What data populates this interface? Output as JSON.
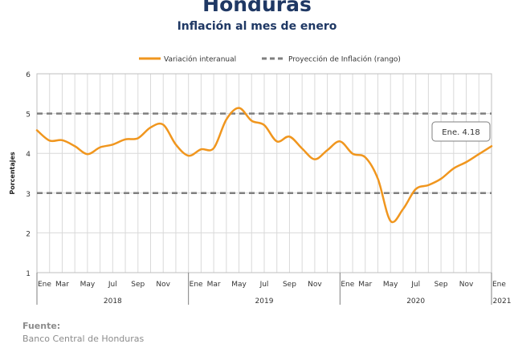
{
  "title": "Honduras",
  "subtitle": "Inflación al mes de enero",
  "source": {
    "label": "Fuente:",
    "text": "Banco Central de Honduras"
  },
  "colors": {
    "series": "#f0961e",
    "target": "#7f7f7f",
    "title": "#1f3864",
    "grid": "#d9d9d9"
  },
  "chart_data": {
    "type": "line",
    "ylabel": "Porcentajes",
    "ylim": [
      1,
      6
    ],
    "yticks": [
      1,
      2,
      3,
      4,
      5,
      6
    ],
    "grid": true,
    "legend_position": "top",
    "x_tick_labels": [
      "Ene",
      "Mar",
      "May",
      "Jul",
      "Sep",
      "Nov",
      "Ene",
      "Mar",
      "May",
      "Jul",
      "Sep",
      "Nov",
      "Ene",
      "Mar",
      "May",
      "Jul",
      "Sep",
      "Nov",
      "Ene"
    ],
    "year_labels": [
      "2018",
      "2019",
      "2020",
      "2021"
    ],
    "months": [
      "Ene 2018",
      "Feb 2018",
      "Mar 2018",
      "Abr 2018",
      "May 2018",
      "Jun 2018",
      "Jul 2018",
      "Ago 2018",
      "Sep 2018",
      "Oct 2018",
      "Nov 2018",
      "Dic 2018",
      "Ene 2019",
      "Feb 2019",
      "Mar 2019",
      "Abr 2019",
      "May 2019",
      "Jun 2019",
      "Jul 2019",
      "Ago 2019",
      "Sep 2019",
      "Oct 2019",
      "Nov 2019",
      "Dic 2019",
      "Ene 2020",
      "Feb 2020",
      "Mar 2020",
      "Abr 2020",
      "May 2020",
      "Jun 2020",
      "Jul 2020",
      "Ago 2020",
      "Sep 2020",
      "Oct 2020",
      "Nov 2020",
      "Dic 2020",
      "Ene 2021"
    ],
    "series": [
      {
        "name": "Variación interanual",
        "values": [
          4.58,
          4.32,
          4.33,
          4.18,
          3.98,
          4.15,
          4.22,
          4.35,
          4.38,
          4.65,
          4.72,
          4.22,
          3.94,
          4.1,
          4.13,
          4.85,
          5.14,
          4.82,
          4.71,
          4.3,
          4.42,
          4.12,
          3.85,
          4.08,
          4.3,
          3.99,
          3.9,
          3.36,
          2.3,
          2.6,
          3.1,
          3.2,
          3.36,
          3.62,
          3.78,
          3.98,
          4.18
        ]
      },
      {
        "name": "Proyección de Inflación (rango)",
        "values": [
          3,
          5
        ]
      }
    ],
    "annotations": [
      {
        "text": "Ene. 4.18",
        "month": "Ene 2021",
        "value": 4.18
      }
    ]
  }
}
